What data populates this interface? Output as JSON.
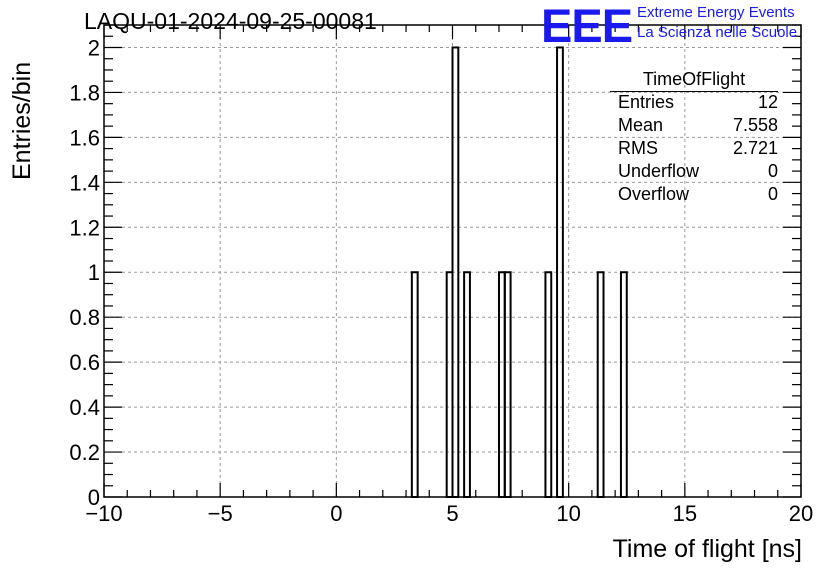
{
  "chart_data": {
    "type": "histogram",
    "title": "LAQU-01-2024-09-25-00081",
    "xlabel": "Time of flight [ns]",
    "ylabel": "Entries/bin",
    "xlim": [
      -10,
      20
    ],
    "ylim": [
      0,
      2.1
    ],
    "grid": true,
    "x_ticks": [
      "−10",
      "−5",
      "0",
      "5",
      "10",
      "15",
      "20"
    ],
    "x_tick_values": [
      -10,
      -5,
      0,
      5,
      10,
      15,
      20
    ],
    "y_ticks": [
      "0",
      "0.2",
      "0.4",
      "0.6",
      "0.8",
      "1",
      "1.2",
      "1.4",
      "1.6",
      "1.8",
      "2"
    ],
    "y_tick_values": [
      0,
      0.2,
      0.4,
      0.6,
      0.8,
      1,
      1.2,
      1.4,
      1.6,
      1.8,
      2
    ],
    "bin_width": 0.25,
    "bins": [
      {
        "x0": 3.25,
        "x1": 3.5,
        "count": 1
      },
      {
        "x0": 4.75,
        "x1": 5.0,
        "count": 1
      },
      {
        "x0": 5.0,
        "x1": 5.25,
        "count": 2
      },
      {
        "x0": 5.5,
        "x1": 5.75,
        "count": 1
      },
      {
        "x0": 7.0,
        "x1": 7.25,
        "count": 1
      },
      {
        "x0": 7.25,
        "x1": 7.5,
        "count": 1
      },
      {
        "x0": 9.0,
        "x1": 9.25,
        "count": 1
      },
      {
        "x0": 9.5,
        "x1": 9.75,
        "count": 2
      },
      {
        "x0": 11.25,
        "x1": 11.5,
        "count": 1
      },
      {
        "x0": 12.25,
        "x1": 12.5,
        "count": 1
      }
    ],
    "stats": {
      "name": "TimeOfFlight",
      "rows": [
        {
          "label": "Entries",
          "value": "12"
        },
        {
          "label": "Mean",
          "value": "7.558"
        },
        {
          "label": "RMS",
          "value": "2.721"
        },
        {
          "label": "Underflow",
          "value": "0"
        },
        {
          "label": "Overflow",
          "value": "0"
        }
      ]
    }
  },
  "logo": {
    "mark": "EEE",
    "line1": "Extreme Energy Events",
    "line2": "La Scienza nelle Scuole",
    "color": "#1a1aee"
  }
}
